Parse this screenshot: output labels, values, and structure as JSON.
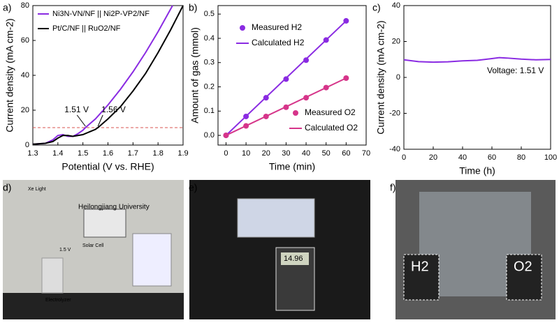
{
  "chart_data": [
    {
      "type": "line",
      "panel_label": "a)",
      "x_label": "Potential (V vs. RHE)",
      "y_label": "Current density (mA cm-2)",
      "xlim": [
        1.3,
        1.9
      ],
      "xticks": [
        1.3,
        1.4,
        1.5,
        1.6,
        1.7,
        1.8,
        1.9
      ],
      "ylim": [
        0,
        80
      ],
      "yticks": [
        0,
        20,
        40,
        60,
        80
      ],
      "series": [
        {
          "name": "Ni3N-VN/NF || Ni2P-VP2/NF",
          "color": "#8a2be2",
          "mode": "line",
          "x": [
            1.3,
            1.35,
            1.38,
            1.4,
            1.42,
            1.44,
            1.46,
            1.48,
            1.5,
            1.51,
            1.55,
            1.6,
            1.65,
            1.7,
            1.75,
            1.8,
            1.858
          ],
          "values": [
            0.5,
            1,
            3,
            5.5,
            6,
            5,
            5,
            6.5,
            8.5,
            10,
            15,
            23,
            32,
            42,
            53,
            65,
            80
          ]
        },
        {
          "name": "Pt/C/NF || RuO2/NF",
          "color": "#000000",
          "mode": "line",
          "x": [
            1.3,
            1.35,
            1.38,
            1.4,
            1.42,
            1.44,
            1.46,
            1.5,
            1.55,
            1.56,
            1.6,
            1.65,
            1.7,
            1.75,
            1.8,
            1.85,
            1.9
          ],
          "values": [
            0.5,
            1,
            2,
            4,
            5.5,
            5.5,
            5,
            6,
            9,
            10,
            15,
            22,
            31,
            41,
            53,
            66,
            80
          ]
        }
      ],
      "hline": 10,
      "hline_color": "#d9534f",
      "annotations": [
        {
          "text": "1.51 V",
          "x": 1.51,
          "y": 10
        },
        {
          "text": "1.56 V",
          "x": 1.56,
          "y": 10
        }
      ]
    },
    {
      "type": "scatter",
      "panel_label": "b)",
      "x_label": "Time (min)",
      "y_label": "Amount of gas (mmol)",
      "xlim": [
        -4,
        70
      ],
      "xticks": [
        0,
        10,
        20,
        30,
        40,
        50,
        60,
        70
      ],
      "ylim": [
        -0.04,
        0.535
      ],
      "yticks": [
        {
          "value": 0,
          "label": "0.0"
        },
        0.1,
        0.2,
        0.3,
        0.4,
        0.5
      ],
      "series": [
        {
          "name": "Measured H2",
          "color": "#8a2be2",
          "mode": "markers",
          "x": [
            0,
            10,
            20,
            30,
            40,
            50,
            60
          ],
          "values": [
            0,
            0.078,
            0.155,
            0.232,
            0.31,
            0.393,
            0.472
          ]
        },
        {
          "name": "Calculated H2",
          "color": "#8a2be2",
          "mode": "line",
          "x": [
            0,
            60
          ],
          "values": [
            0,
            0.472
          ]
        },
        {
          "name": "Measured O2",
          "color": "#d6358a",
          "mode": "markers",
          "x": [
            0,
            10,
            20,
            30,
            40,
            50,
            60
          ],
          "values": [
            0,
            0.039,
            0.078,
            0.116,
            0.155,
            0.197,
            0.236
          ]
        },
        {
          "name": "Calculated O2",
          "color": "#d6358a",
          "mode": "line",
          "x": [
            0,
            60
          ],
          "values": [
            0,
            0.236
          ]
        }
      ]
    },
    {
      "type": "line",
      "panel_label": "c)",
      "x_label": "Time (h)",
      "y_label": "Current density (mA cm-2)",
      "xlim": [
        0,
        100
      ],
      "xticks": [
        0,
        20,
        40,
        60,
        80,
        100
      ],
      "ylim": [
        -40,
        40
      ],
      "yticks": [
        -40,
        -20,
        0,
        20,
        40
      ],
      "series": [
        {
          "name": null,
          "color": "#8a2be2",
          "mode": "line",
          "x": [
            0,
            10,
            20,
            30,
            40,
            50,
            60,
            65,
            70,
            80,
            90,
            100
          ],
          "values": [
            9.8,
            8.8,
            8.5,
            8.7,
            9.2,
            9.5,
            10.5,
            11,
            10.8,
            10.2,
            9.8,
            10
          ]
        }
      ],
      "annotations": [
        {
          "text": "Voltage: 1.51 V"
        }
      ]
    }
  ],
  "photos": [
    {
      "panel_label": "d)",
      "labels": [
        "Xe Light",
        "Heilongjiang University",
        "Solar Cell",
        "1.5 V",
        "Electrolyzer"
      ]
    },
    {
      "panel_label": "e)",
      "labels": [
        "14.96"
      ]
    },
    {
      "panel_label": "f)",
      "labels": [
        "H2",
        "O2"
      ]
    }
  ]
}
